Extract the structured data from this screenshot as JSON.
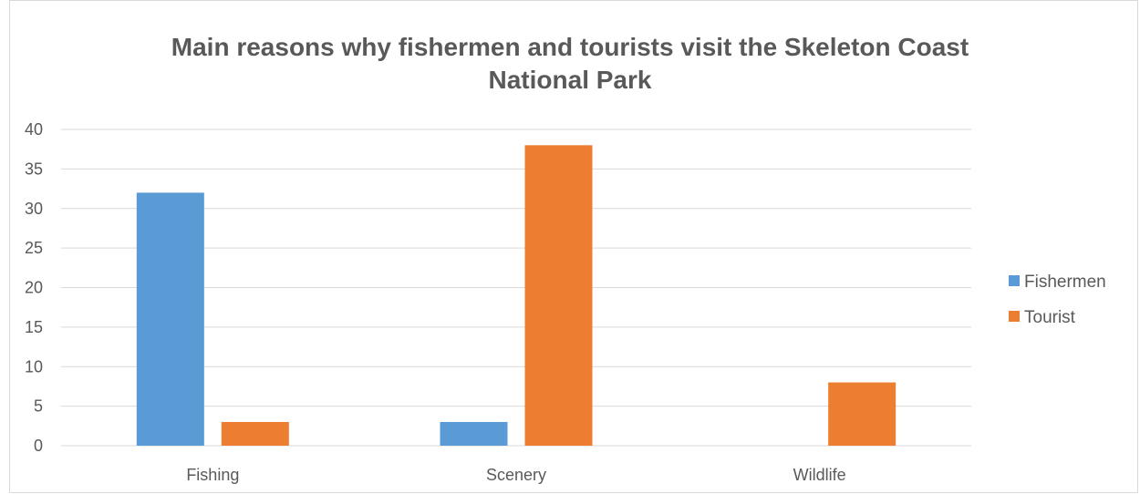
{
  "chart_data": {
    "type": "bar",
    "title_lines": [
      "Main reasons why fishermen and tourists visit the Skeleton Coast",
      "National Park"
    ],
    "categories": [
      "Fishing",
      "Scenery",
      "Wildlife"
    ],
    "series": [
      {
        "name": "Fishermen",
        "color": "#5b9bd5",
        "values": [
          32,
          3,
          0
        ]
      },
      {
        "name": "Tourist",
        "color": "#ed7d31",
        "values": [
          3,
          38,
          8
        ]
      }
    ],
    "ylim": [
      0,
      40
    ],
    "yticks": [
      0,
      5,
      10,
      15,
      20,
      25,
      30,
      35,
      40
    ],
    "grid": true,
    "legend_position": "right"
  }
}
